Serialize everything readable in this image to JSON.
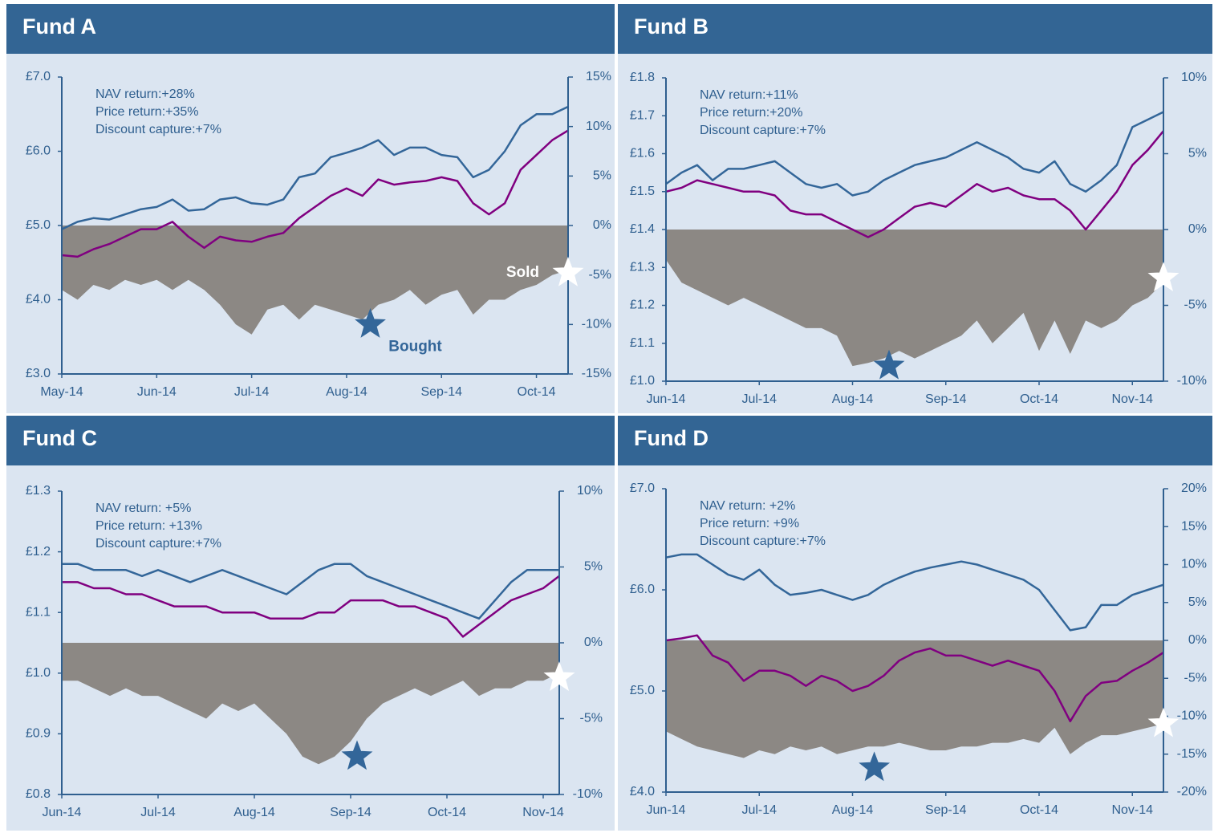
{
  "chart_data": [
    {
      "type": "line",
      "title": "Fund A",
      "annotations": [
        "NAV return:+28%",
        "Price return:+35%",
        "Discount capture:+7%"
      ],
      "categories": [
        "May-14",
        null,
        null,
        null,
        null,
        null,
        "Jun-14",
        null,
        null,
        null,
        null,
        null,
        "Jul-14",
        null,
        null,
        null,
        null,
        null,
        "Aug-14",
        null,
        null,
        null,
        null,
        null,
        "Sep-14",
        null,
        null,
        null,
        null,
        null,
        "Oct-14",
        null,
        null
      ],
      "series": [
        {
          "type": "area",
          "axis": "y2",
          "color": "#8c8884",
          "values": [
            -6.5,
            -7.5,
            -6.0,
            -6.5,
            -5.5,
            -6.0,
            -5.5,
            -6.5,
            -5.5,
            -6.5,
            -8.0,
            -10.0,
            -11.0,
            -8.5,
            -8.0,
            -9.5,
            -8.0,
            -8.5,
            -9.0,
            -9.5,
            -8.0,
            -7.5,
            -6.5,
            -8.0,
            -7.0,
            -6.5,
            -9.0,
            -7.5,
            -7.5,
            -6.5,
            -6.0,
            -5.0,
            -4.5
          ]
        },
        {
          "type": "line",
          "color": "#336699",
          "values": [
            4.95,
            5.05,
            5.1,
            5.08,
            5.15,
            5.22,
            5.25,
            5.35,
            5.2,
            5.22,
            5.35,
            5.38,
            5.3,
            5.28,
            5.35,
            5.65,
            5.7,
            5.92,
            5.98,
            6.05,
            6.15,
            5.95,
            6.05,
            6.05,
            5.95,
            5.92,
            5.65,
            5.75,
            6.0,
            6.35,
            6.5,
            6.5,
            6.6
          ]
        },
        {
          "type": "line",
          "color": "#800080",
          "values": [
            4.6,
            4.58,
            4.68,
            4.75,
            4.85,
            4.95,
            4.95,
            5.05,
            4.85,
            4.7,
            4.85,
            4.8,
            4.78,
            4.85,
            4.9,
            5.1,
            5.25,
            5.4,
            5.5,
            5.4,
            5.62,
            5.55,
            5.58,
            5.6,
            5.65,
            5.6,
            5.3,
            5.15,
            5.3,
            5.75,
            5.95,
            6.15,
            6.28
          ]
        }
      ],
      "markers": [
        {
          "at": 19.5,
          "value": -10,
          "label": "Bought",
          "color": "#336699"
        },
        {
          "at": 32,
          "value": -4.8,
          "label": "Sold",
          "color": "#ffffff"
        }
      ],
      "ylim": [
        3,
        7
      ],
      "yticks": [
        {
          "value": 3,
          "label": "£3.0"
        },
        {
          "value": 4,
          "label": "£4.0"
        },
        {
          "value": 5,
          "label": "£5.0"
        },
        {
          "value": 6,
          "label": "£6.0"
        },
        {
          "value": 7,
          "label": "£7.0"
        }
      ],
      "y2lim": [
        -15,
        15
      ],
      "y2ticks": [
        {
          "value": -15,
          "label": "-15%"
        },
        {
          "value": -10,
          "label": "-10%"
        },
        {
          "value": -5,
          "label": "-5%"
        },
        {
          "value": 0,
          "label": "0%"
        },
        {
          "value": 5,
          "label": "5%"
        },
        {
          "value": 10,
          "label": "10%"
        },
        {
          "value": 15,
          "label": "15%"
        }
      ]
    },
    {
      "type": "line",
      "title": "Fund B",
      "annotations": [
        "NAV return:+11%",
        "Price return:+20%",
        "Discount capture:+7%"
      ],
      "categories": [
        "Jun-14",
        null,
        null,
        null,
        null,
        null,
        "Jul-14",
        null,
        null,
        null,
        null,
        null,
        "Aug-14",
        null,
        null,
        null,
        null,
        null,
        "Sep-14",
        null,
        null,
        null,
        null,
        null,
        "Oct-14",
        null,
        null,
        null,
        null,
        null,
        "Nov-14",
        null,
        null
      ],
      "series": [
        {
          "type": "area",
          "axis": "y2",
          "color": "#8c8884",
          "values": [
            -2.0,
            -3.5,
            -4.0,
            -4.5,
            -5.0,
            -4.5,
            -5.0,
            -5.5,
            -6.0,
            -6.5,
            -6.5,
            -7.0,
            -9.0,
            -8.8,
            -8.5,
            -8.0,
            -8.5,
            -8.0,
            -7.5,
            -7.0,
            -6.0,
            -7.5,
            -6.5,
            -5.5,
            -8.0,
            -6.0,
            -8.2,
            -6.0,
            -6.5,
            -6.0,
            -5.0,
            -4.5,
            -3.5
          ]
        },
        {
          "type": "line",
          "color": "#336699",
          "values": [
            1.52,
            1.55,
            1.57,
            1.53,
            1.56,
            1.56,
            1.57,
            1.58,
            1.55,
            1.52,
            1.51,
            1.52,
            1.49,
            1.5,
            1.53,
            1.55,
            1.57,
            1.58,
            1.59,
            1.61,
            1.63,
            1.61,
            1.59,
            1.56,
            1.55,
            1.58,
            1.52,
            1.5,
            1.53,
            1.57,
            1.67,
            1.69,
            1.71
          ]
        },
        {
          "type": "line",
          "color": "#800080",
          "values": [
            1.5,
            1.51,
            1.53,
            1.52,
            1.51,
            1.5,
            1.5,
            1.49,
            1.45,
            1.44,
            1.44,
            1.42,
            1.4,
            1.38,
            1.4,
            1.43,
            1.46,
            1.47,
            1.46,
            1.49,
            1.52,
            1.5,
            1.51,
            1.49,
            1.48,
            1.48,
            1.45,
            1.4,
            1.45,
            1.5,
            1.57,
            1.61,
            1.66
          ]
        }
      ],
      "markers": [
        {
          "at": 14.35,
          "value": -9.0,
          "color": "#336699"
        },
        {
          "at": 32,
          "value": -3.2,
          "color": "#ffffff"
        }
      ],
      "ylim": [
        1.0,
        1.8
      ],
      "yticks": [
        {
          "value": 1.0,
          "label": "£1.0"
        },
        {
          "value": 1.1,
          "label": "£1.1"
        },
        {
          "value": 1.2,
          "label": "£1.2"
        },
        {
          "value": 1.3,
          "label": "£1.3"
        },
        {
          "value": 1.4,
          "label": "£1.4"
        },
        {
          "value": 1.5,
          "label": "£1.5"
        },
        {
          "value": 1.6,
          "label": "£1.6"
        },
        {
          "value": 1.7,
          "label": "£1.7"
        },
        {
          "value": 1.8,
          "label": "£1.8"
        }
      ],
      "y2lim": [
        -10,
        10
      ],
      "y2ticks": [
        {
          "value": -10,
          "label": "-10%"
        },
        {
          "value": -5,
          "label": "-5%"
        },
        {
          "value": 0,
          "label": "0%"
        },
        {
          "value": 5,
          "label": "5%"
        },
        {
          "value": 10,
          "label": "10%"
        }
      ]
    },
    {
      "type": "line",
      "title": "Fund C",
      "annotations": [
        "NAV return:  +5%",
        "Price return:  +13%",
        "Discount capture:+7%"
      ],
      "categories": [
        "Jun-14",
        null,
        null,
        null,
        null,
        null,
        "Jul-14",
        null,
        null,
        null,
        null,
        null,
        "Aug-14",
        null,
        null,
        null,
        null,
        null,
        "Sep-14",
        null,
        null,
        null,
        null,
        null,
        "Oct-14",
        null,
        null,
        null,
        null,
        null,
        "Nov-14",
        null
      ],
      "series": [
        {
          "type": "area",
          "axis": "y2",
          "color": "#8c8884",
          "values": [
            -2.5,
            -2.5,
            -3.0,
            -3.5,
            -3.0,
            -3.5,
            -3.5,
            -4.0,
            -4.5,
            -5.0,
            -4.0,
            -4.5,
            -4.0,
            -5.0,
            -6.0,
            -7.5,
            -8.0,
            -7.5,
            -6.5,
            -5.0,
            -4.0,
            -3.5,
            -3.0,
            -3.5,
            -3.0,
            -2.5,
            -3.5,
            -3.0,
            -3.0,
            -2.5,
            -2.5,
            -2.0
          ]
        },
        {
          "type": "line",
          "color": "#336699",
          "values": [
            1.18,
            1.18,
            1.17,
            1.17,
            1.17,
            1.16,
            1.17,
            1.16,
            1.15,
            1.16,
            1.17,
            1.16,
            1.15,
            1.14,
            1.13,
            1.15,
            1.17,
            1.18,
            1.18,
            1.16,
            1.15,
            1.14,
            1.13,
            1.12,
            1.11,
            1.1,
            1.09,
            1.12,
            1.15,
            1.17,
            1.17,
            1.17
          ]
        },
        {
          "type": "line",
          "color": "#800080",
          "values": [
            1.15,
            1.15,
            1.14,
            1.14,
            1.13,
            1.13,
            1.12,
            1.11,
            1.11,
            1.11,
            1.1,
            1.1,
            1.1,
            1.09,
            1.09,
            1.09,
            1.1,
            1.1,
            1.12,
            1.12,
            1.12,
            1.11,
            1.11,
            1.1,
            1.09,
            1.06,
            1.08,
            1.1,
            1.12,
            1.13,
            1.14,
            1.16
          ]
        }
      ],
      "markers": [
        {
          "at": 18.4,
          "value": -7.5,
          "color": "#336699"
        },
        {
          "at": 31,
          "value": -2.3,
          "color": "#ffffff"
        }
      ],
      "ylim": [
        0.8,
        1.3
      ],
      "yticks": [
        {
          "value": 0.8,
          "label": "£0.8"
        },
        {
          "value": 0.9,
          "label": "£0.9"
        },
        {
          "value": 1.0,
          "label": "£1.0"
        },
        {
          "value": 1.1,
          "label": "£1.1"
        },
        {
          "value": 1.2,
          "label": "£1.2"
        },
        {
          "value": 1.3,
          "label": "£1.3"
        }
      ],
      "y2lim": [
        -10,
        10
      ],
      "y2ticks": [
        {
          "value": -10,
          "label": "-10%"
        },
        {
          "value": -5,
          "label": "-5%"
        },
        {
          "value": 0,
          "label": "0%"
        },
        {
          "value": 5,
          "label": "5%"
        },
        {
          "value": 10,
          "label": "10%"
        }
      ]
    },
    {
      "type": "line",
      "title": "Fund D",
      "annotations": [
        "NAV return:  +2%",
        "Price return:  +9%",
        "Discount capture:+7%"
      ],
      "categories": [
        "Jun-14",
        null,
        null,
        null,
        null,
        null,
        "Jul-14",
        null,
        null,
        null,
        null,
        null,
        "Aug-14",
        null,
        null,
        null,
        null,
        null,
        "Sep-14",
        null,
        null,
        null,
        null,
        null,
        "Oct-14",
        null,
        null,
        null,
        null,
        null,
        "Nov-14",
        null,
        null
      ],
      "series": [
        {
          "type": "area",
          "axis": "y2",
          "color": "#8c8884",
          "values": [
            -12,
            -13,
            -14,
            -14.5,
            -15,
            -15.5,
            -14.5,
            -15,
            -14,
            -14.5,
            -14,
            -15,
            -14.5,
            -14,
            -14,
            -13.5,
            -14,
            -14.5,
            -14.5,
            -14,
            -14,
            -13.5,
            -13.5,
            -13,
            -13.5,
            -11.5,
            -15,
            -13.5,
            -12.5,
            -12.5,
            -12,
            -11.5,
            -11
          ]
        },
        {
          "type": "line",
          "color": "#336699",
          "values": [
            6.32,
            6.35,
            6.35,
            6.25,
            6.15,
            6.1,
            6.2,
            6.05,
            5.95,
            5.97,
            6.0,
            5.95,
            5.9,
            5.95,
            6.05,
            6.12,
            6.18,
            6.22,
            6.25,
            6.28,
            6.25,
            6.2,
            6.15,
            6.1,
            6.0,
            5.8,
            5.6,
            5.63,
            5.85,
            5.85,
            5.95,
            6.0,
            6.05
          ]
        },
        {
          "type": "line",
          "color": "#800080",
          "values": [
            5.5,
            5.52,
            5.55,
            5.35,
            5.28,
            5.1,
            5.2,
            5.2,
            5.15,
            5.05,
            5.15,
            5.1,
            5.0,
            5.05,
            5.15,
            5.3,
            5.38,
            5.42,
            5.35,
            5.35,
            5.3,
            5.25,
            5.3,
            5.25,
            5.2,
            5.0,
            4.7,
            4.95,
            5.08,
            5.1,
            5.2,
            5.28,
            5.38
          ]
        }
      ],
      "markers": [
        {
          "at": 13.4,
          "value": -16.8,
          "color": "#336699"
        },
        {
          "at": 32,
          "value": -11,
          "color": "#ffffff"
        }
      ],
      "ylim": [
        4,
        7
      ],
      "yticks": [
        {
          "value": 4,
          "label": "£4.0"
        },
        {
          "value": 5,
          "label": "£5.0"
        },
        {
          "value": 6,
          "label": "£6.0"
        },
        {
          "value": 7,
          "label": "£7.0"
        }
      ],
      "y2lim": [
        -20,
        20
      ],
      "y2ticks": [
        {
          "value": -20,
          "label": "-20%"
        },
        {
          "value": -15,
          "label": "-15%"
        },
        {
          "value": -10,
          "label": "-10%"
        },
        {
          "value": -5,
          "label": "-5%"
        },
        {
          "value": 0,
          "label": "0%"
        },
        {
          "value": 5,
          "label": "5%"
        },
        {
          "value": 10,
          "label": "10%"
        },
        {
          "value": 15,
          "label": "15%"
        },
        {
          "value": 20,
          "label": "20%"
        }
      ]
    }
  ]
}
